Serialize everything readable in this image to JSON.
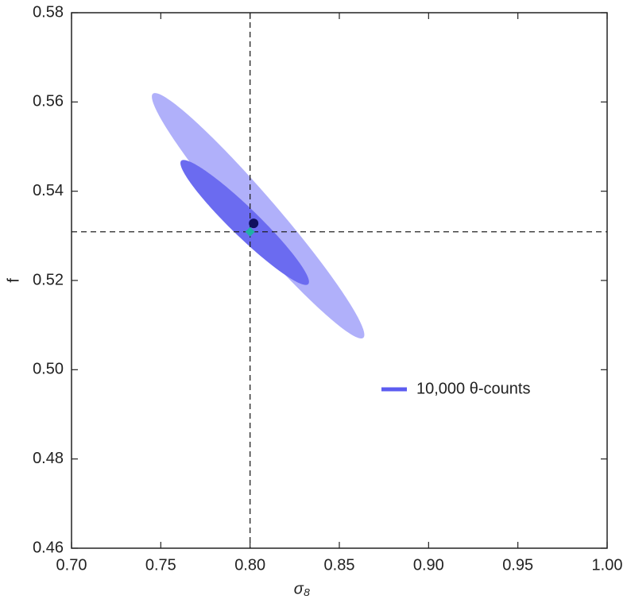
{
  "chart_data": {
    "type": "contour",
    "x_label": "σ₈",
    "y_label": "f",
    "xlim": [
      0.7,
      1.0
    ],
    "xticks": [
      {
        "value": 0.7,
        "label": "0.70"
      },
      0.75,
      {
        "value": 0.8,
        "label": "0.80"
      },
      0.85,
      {
        "value": 0.9,
        "label": "0.90"
      },
      0.95,
      {
        "value": 1.0,
        "label": "1.00"
      }
    ],
    "ylim": [
      0.46,
      0.58
    ],
    "yticks": [
      0.46,
      0.48,
      {
        "value": 0.5,
        "label": "0.50"
      },
      0.52,
      0.54,
      0.56,
      0.58
    ],
    "series": [
      {
        "name": "10,000 θ-counts",
        "color": "#5c5cf0",
        "contours": [
          {
            "x_range": [
              0.745,
              0.864
            ],
            "y_range": [
              0.507,
              0.562
            ],
            "rho": -0.97,
            "color": "#b0b0fa"
          },
          {
            "x_range": [
              0.761,
              0.833
            ],
            "y_range": [
              0.519,
              0.547
            ],
            "rho": -0.95,
            "color": "#6b6bf0"
          }
        ]
      }
    ],
    "points": [
      {
        "x": 0.802,
        "y": 0.5328,
        "color": "#10105e",
        "marker": "circle"
      },
      {
        "x": 0.8,
        "y": 0.5309,
        "color": "#1fb0a6",
        "marker": "diamond"
      }
    ],
    "reference_x": 0.8,
    "reference_y": 0.5309,
    "legend": "right"
  }
}
